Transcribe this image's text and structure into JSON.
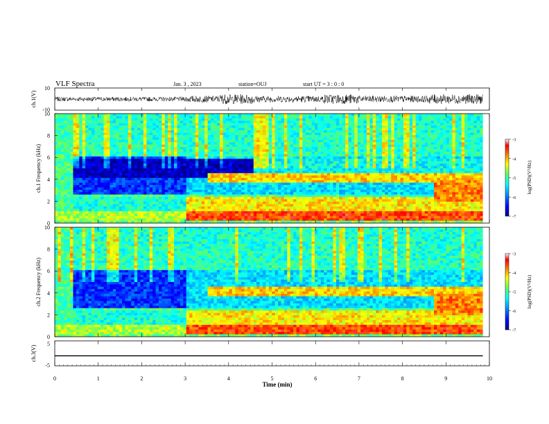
{
  "header": {
    "title": "VLF Spectra",
    "date": "Jan. 3 , 2023",
    "station": "station=OUJ",
    "start": "start UT = 3 : 0 : 0"
  },
  "chart_data": [
    {
      "type": "line",
      "panel": "ch.1 waveform",
      "ylabel": "ch.1(V)",
      "ylim": [
        -10,
        10
      ],
      "ytick_labels": [
        "10",
        "-10"
      ],
      "xlim": [
        0,
        9.85
      ],
      "description_values": {
        "baseline": 0,
        "typical_amplitude": 2,
        "burst_amplitude": 6
      }
    },
    {
      "type": "heatmap",
      "panel": "ch.1 spectrogram",
      "ylabel": "ch.1 Frequency (kHz)",
      "ylim": [
        0,
        10
      ],
      "ytick_labels": [
        "0",
        "2",
        "4",
        "6",
        "8",
        "10"
      ],
      "xlim": [
        0,
        9.85
      ],
      "colorbar": {
        "label": "log(PSD)(V²/Hz)",
        "range": [
          -7,
          -3
        ],
        "tick_labels": [
          "-3",
          "-4",
          "-5",
          "-6",
          "-7"
        ]
      }
    },
    {
      "type": "heatmap",
      "panel": "ch.2 spectrogram",
      "ylabel": "ch.2 Frequency (kHz)",
      "ylim": [
        0,
        10
      ],
      "ytick_labels": [
        "0",
        "2",
        "4",
        "6",
        "8",
        "10"
      ],
      "xlim": [
        0,
        9.85
      ],
      "colorbar": {
        "label": "log(PSD)(V²/Hz)",
        "range": [
          -7,
          -3
        ],
        "tick_labels": [
          "-3",
          "-4",
          "-5",
          "-6",
          "-7"
        ]
      }
    },
    {
      "type": "line",
      "panel": "ch.3 waveform",
      "ylabel": "ch.3(V)",
      "ylim": [
        -5,
        5
      ],
      "ytick_labels": [
        "5",
        "-5"
      ],
      "x": [
        0,
        9.85
      ],
      "y": [
        -1,
        -1
      ]
    }
  ],
  "xaxis": {
    "label": "Time (min)",
    "range": [
      0,
      10
    ],
    "tick_labels": [
      "0",
      "1",
      "2",
      "3",
      "4",
      "5",
      "6",
      "7",
      "8",
      "9",
      "10"
    ]
  },
  "colors": {
    "waveform": "#000000",
    "axes": "#000000",
    "colormap": [
      "#00008f",
      "#0000ff",
      "#00a0ff",
      "#00ffff",
      "#60ff60",
      "#ffff00",
      "#ff8000",
      "#ff0000",
      "#ffffff"
    ]
  }
}
